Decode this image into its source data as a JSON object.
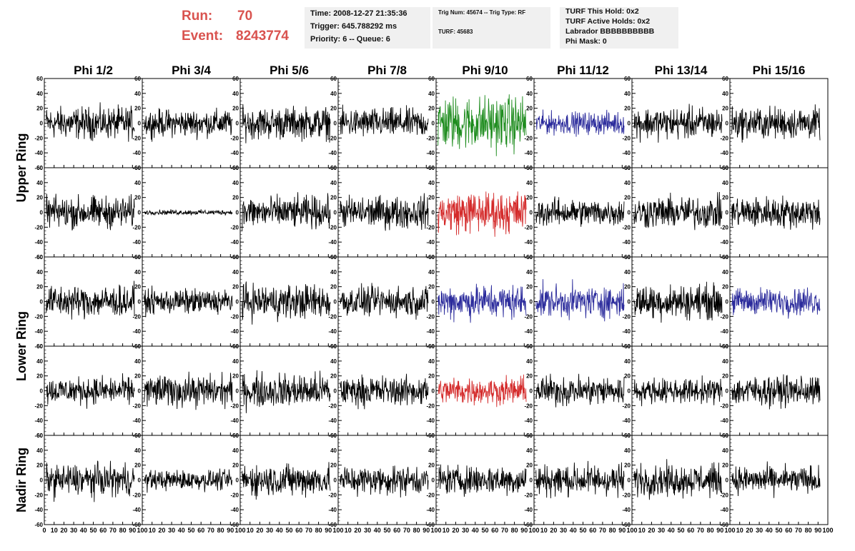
{
  "header": {
    "run_label": "Run:",
    "run_value": "70",
    "event_label": "Event:",
    "event_value": "8243774",
    "box1": [
      "Time: 2008-12-27 21:35:36",
      "Trigger: 645.788292 ms",
      "Priority: 6 -- Queue: 6"
    ],
    "box2": [
      "Trig Num: 45674 -- Trig Type: RF",
      "TURF: 45683"
    ],
    "box3": [
      "TURF This Hold: 0x2",
      "TURF Active Holds: 0x2",
      "Labrador BBBBBBBBBB",
      "Phi Mask: 0"
    ]
  },
  "colors": {
    "black": "#000000",
    "green": "#1e8c1e",
    "blue": "#2b2b9c",
    "red": "#d42a2a",
    "accent_text": "#d9534f",
    "info_bg": "#f0f0f0"
  },
  "chart_data": {
    "type": "line",
    "columns": [
      "Phi 1/2",
      "Phi 3/4",
      "Phi 5/6",
      "Phi 7/8",
      "Phi 9/10",
      "Phi 11/12",
      "Phi 13/14",
      "Phi 15/16"
    ],
    "row_groups": [
      {
        "label": "Upper Ring",
        "rows": [
          0,
          1
        ]
      },
      {
        "label": "Lower Ring",
        "rows": [
          2,
          3
        ]
      },
      {
        "label": "Nadir Ring",
        "rows": [
          4
        ]
      }
    ],
    "xlim": [
      0,
      100
    ],
    "xticks": [
      "0",
      "10",
      "20",
      "30",
      "40",
      "50",
      "60",
      "70",
      "80",
      "90",
      "100"
    ],
    "ylim": [
      -60,
      60
    ],
    "yticks": [
      "60",
      "40",
      "20",
      "0",
      "-20",
      "-40",
      "-60"
    ],
    "samples": 240,
    "grid": false,
    "panel_colors": [
      [
        "black",
        "black",
        "black",
        "black",
        "green",
        "blue",
        "black",
        "black"
      ],
      [
        "black",
        "black",
        "black",
        "black",
        "red",
        "black",
        "black",
        "black"
      ],
      [
        "black",
        "black",
        "black",
        "black",
        "blue",
        "blue",
        "black",
        "blue"
      ],
      [
        "black",
        "black",
        "black",
        "black",
        "red",
        "black",
        "black",
        "black"
      ],
      [
        "black",
        "black",
        "black",
        "black",
        "black",
        "black",
        "black",
        "black"
      ]
    ],
    "amplitudes": [
      [
        13,
        11,
        13,
        12,
        22,
        9,
        13,
        13
      ],
      [
        13,
        2,
        13,
        13,
        17,
        11,
        13,
        13
      ],
      [
        13,
        10,
        14,
        12,
        14,
        13,
        14,
        11
      ],
      [
        11,
        13,
        14,
        12,
        11,
        12,
        10,
        12
      ],
      [
        13,
        8,
        13,
        12,
        12,
        13,
        13,
        11
      ]
    ]
  }
}
